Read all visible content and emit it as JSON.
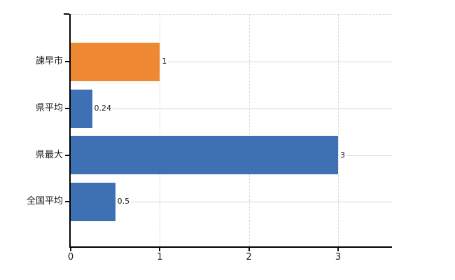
{
  "chart_data": {
    "type": "bar",
    "orientation": "horizontal",
    "title": "",
    "xlabel": "",
    "ylabel": "",
    "categories": [
      "諫早市",
      "県平均",
      "県最大",
      "全国平均"
    ],
    "values": [
      1,
      0.24,
      3,
      0.5
    ],
    "value_labels": [
      "1",
      "0.24",
      "3",
      "0.5"
    ],
    "bar_colors": [
      "#ee8833",
      "#3e71b4",
      "#3e71b4",
      "#3e71b4"
    ],
    "x_ticks": [
      "0",
      "1",
      "2",
      "3"
    ],
    "x_tick_values": [
      0,
      1,
      2,
      3
    ],
    "xlim": [
      0,
      3.6
    ],
    "grid": true,
    "legend": null,
    "colors": {
      "accent_orange": "#ee8833",
      "accent_blue": "#3e71b4",
      "axis": "#000000",
      "gridline": "#d6dad6",
      "text": "#1a1a1a",
      "background": "#ffffff"
    }
  }
}
